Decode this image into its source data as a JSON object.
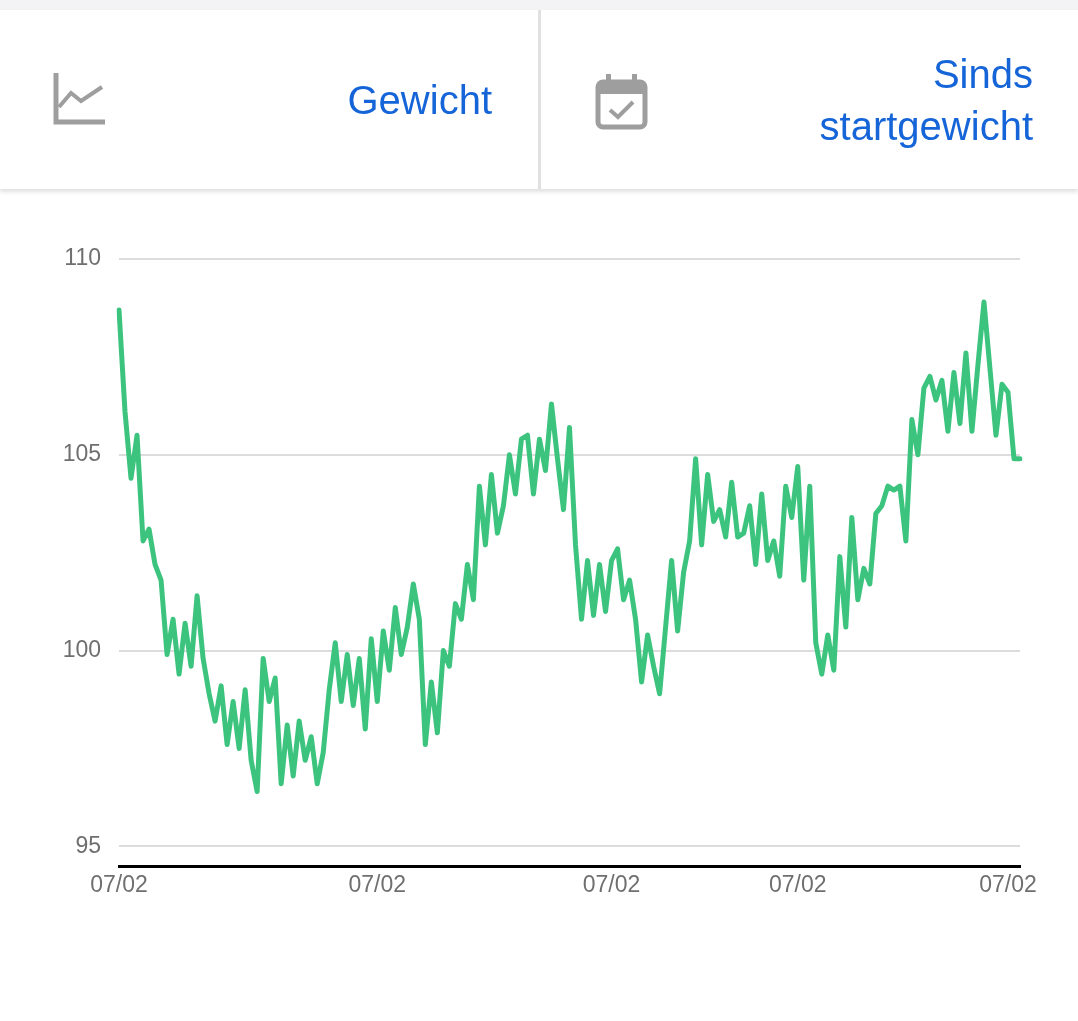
{
  "chart_data": {
    "type": "line",
    "annotations": [
      "Gewicht",
      "Sinds startgewicht"
    ],
    "categories": [
      "07/02",
      null,
      null,
      null,
      null,
      null,
      null,
      null,
      null,
      null,
      null,
      null,
      null,
      null,
      null,
      null,
      null,
      null,
      null,
      null,
      null,
      null,
      null,
      null,
      null,
      null,
      null,
      null,
      null,
      null,
      null,
      null,
      null,
      null,
      null,
      null,
      null,
      null,
      null,
      null,
      null,
      null,
      null,
      "07/02",
      null,
      null,
      null,
      null,
      null,
      null,
      null,
      null,
      null,
      null,
      null,
      null,
      null,
      null,
      null,
      null,
      null,
      null,
      null,
      null,
      null,
      null,
      null,
      null,
      null,
      null,
      null,
      null,
      null,
      null,
      null,
      null,
      null,
      null,
      null,
      null,
      null,
      null,
      "07/02",
      null,
      null,
      null,
      null,
      null,
      null,
      null,
      null,
      null,
      null,
      null,
      null,
      null,
      null,
      null,
      null,
      null,
      null,
      null,
      null,
      null,
      null,
      null,
      null,
      null,
      null,
      null,
      null,
      null,
      null,
      "07/02",
      null,
      null,
      null,
      null,
      null,
      null,
      null,
      null,
      null,
      null,
      null,
      null,
      null,
      null,
      null,
      null,
      null,
      null,
      null,
      null,
      null,
      null,
      null,
      null,
      null,
      null,
      null,
      null,
      null,
      null,
      null,
      null,
      null,
      null,
      "07/02",
      null,
      null
    ],
    "series": [
      {
        "color": "#3cc47f",
        "values": [
          108.7,
          106.1,
          104.4,
          105.5,
          102.8,
          103.1,
          102.2,
          101.8,
          99.9,
          100.8,
          99.4,
          100.7,
          99.6,
          101.4,
          99.8,
          98.9,
          98.2,
          99.1,
          97.6,
          98.7,
          97.5,
          99.0,
          97.2,
          96.4,
          99.8,
          98.7,
          99.3,
          96.6,
          98.1,
          96.8,
          98.2,
          97.2,
          97.8,
          96.6,
          97.4,
          99.0,
          100.2,
          98.7,
          99.9,
          98.6,
          99.8,
          98.0,
          100.3,
          98.7,
          100.5,
          99.5,
          101.1,
          99.9,
          100.6,
          101.7,
          100.8,
          97.6,
          99.2,
          97.9,
          100.0,
          99.6,
          101.2,
          100.8,
          102.2,
          101.3,
          104.2,
          102.7,
          104.5,
          103.0,
          103.7,
          105.0,
          104.0,
          105.4,
          105.5,
          104.0,
          105.4,
          104.6,
          106.3,
          104.9,
          103.6,
          105.7,
          102.7,
          100.8,
          102.3,
          100.9,
          102.2,
          101.0,
          102.3,
          102.6,
          101.3,
          101.8,
          100.8,
          99.2,
          100.4,
          99.6,
          98.9,
          100.6,
          102.3,
          100.5,
          102.0,
          102.8,
          104.9,
          102.7,
          104.5,
          103.3,
          103.6,
          102.9,
          104.3,
          102.9,
          103.0,
          103.7,
          102.2,
          104.0,
          102.3,
          102.8,
          101.9,
          104.2,
          103.4,
          104.7,
          101.8,
          104.2,
          100.2,
          99.4,
          100.4,
          99.5,
          102.4,
          100.6,
          103.4,
          101.3,
          102.1,
          101.7,
          103.5,
          103.7,
          104.2,
          104.1,
          104.2,
          102.8,
          105.9,
          105.0,
          106.7,
          107.0,
          106.4,
          106.9,
          105.6,
          107.1,
          105.8,
          107.6,
          105.6,
          107.3,
          108.9,
          107.2,
          105.5,
          106.8,
          106.6,
          104.9,
          104.9
        ]
      }
    ],
    "ylim": [
      94.5,
      110
    ],
    "yticks": [
      95,
      100,
      105,
      110
    ],
    "grid": "y",
    "marker": "none",
    "line_style": "solid"
  }
}
